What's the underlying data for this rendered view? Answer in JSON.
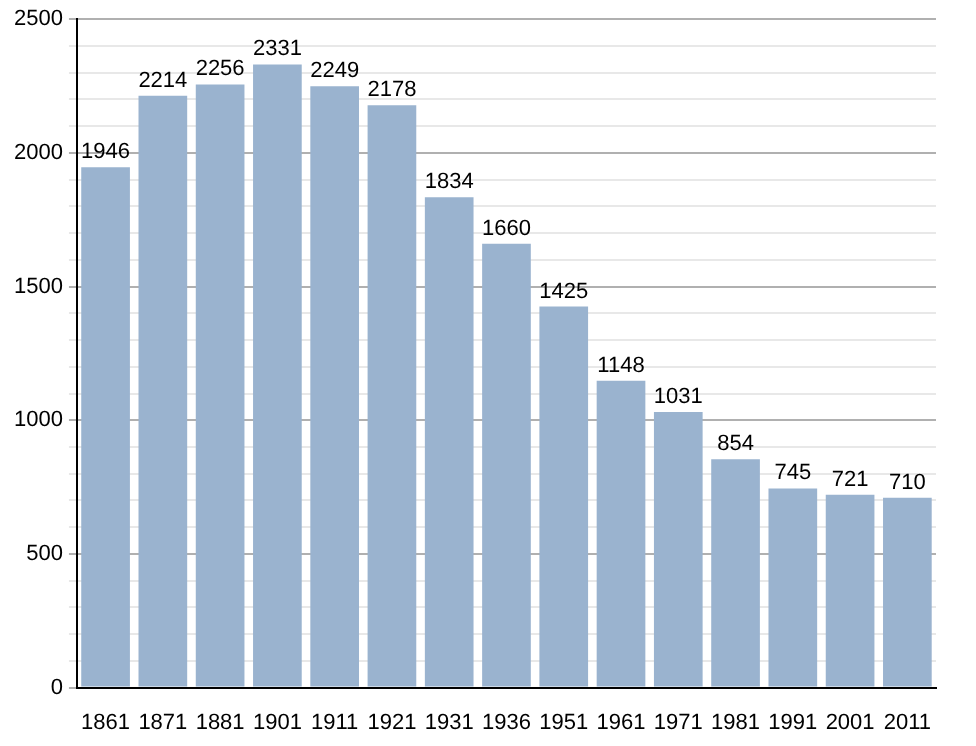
{
  "chart_data": {
    "type": "bar",
    "categories": [
      "1861",
      "1871",
      "1881",
      "1901",
      "1911",
      "1921",
      "1931",
      "1936",
      "1951",
      "1961",
      "1971",
      "1981",
      "1991",
      "2001",
      "2011"
    ],
    "values": [
      1946,
      2214,
      2256,
      2331,
      2249,
      2178,
      1834,
      1660,
      1425,
      1148,
      1031,
      854,
      745,
      721,
      710
    ],
    "color": "#9ab3cf",
    "ylim": [
      0,
      2500
    ],
    "yticks": [
      0,
      {
        "value": 100,
        "label": null
      },
      {
        "value": 200,
        "label": null
      },
      {
        "value": 300,
        "label": null
      },
      {
        "value": 400,
        "label": null
      },
      500,
      {
        "value": 600,
        "label": null
      },
      {
        "value": 700,
        "label": null
      },
      {
        "value": 800,
        "label": null
      },
      {
        "value": 900,
        "label": null
      },
      1000,
      {
        "value": 1100,
        "label": null
      },
      {
        "value": 1200,
        "label": null
      },
      {
        "value": 1300,
        "label": null
      },
      {
        "value": 1400,
        "label": null
      },
      1500,
      {
        "value": 1600,
        "label": null
      },
      {
        "value": 1700,
        "label": null
      },
      {
        "value": 1800,
        "label": null
      },
      {
        "value": 1900,
        "label": null
      },
      2000,
      {
        "value": 2100,
        "label": null
      },
      {
        "value": 2200,
        "label": null
      },
      {
        "value": 2300,
        "label": null
      },
      {
        "value": 2400,
        "label": null
      },
      2500
    ],
    "grid": "y",
    "data_labels": true
  }
}
